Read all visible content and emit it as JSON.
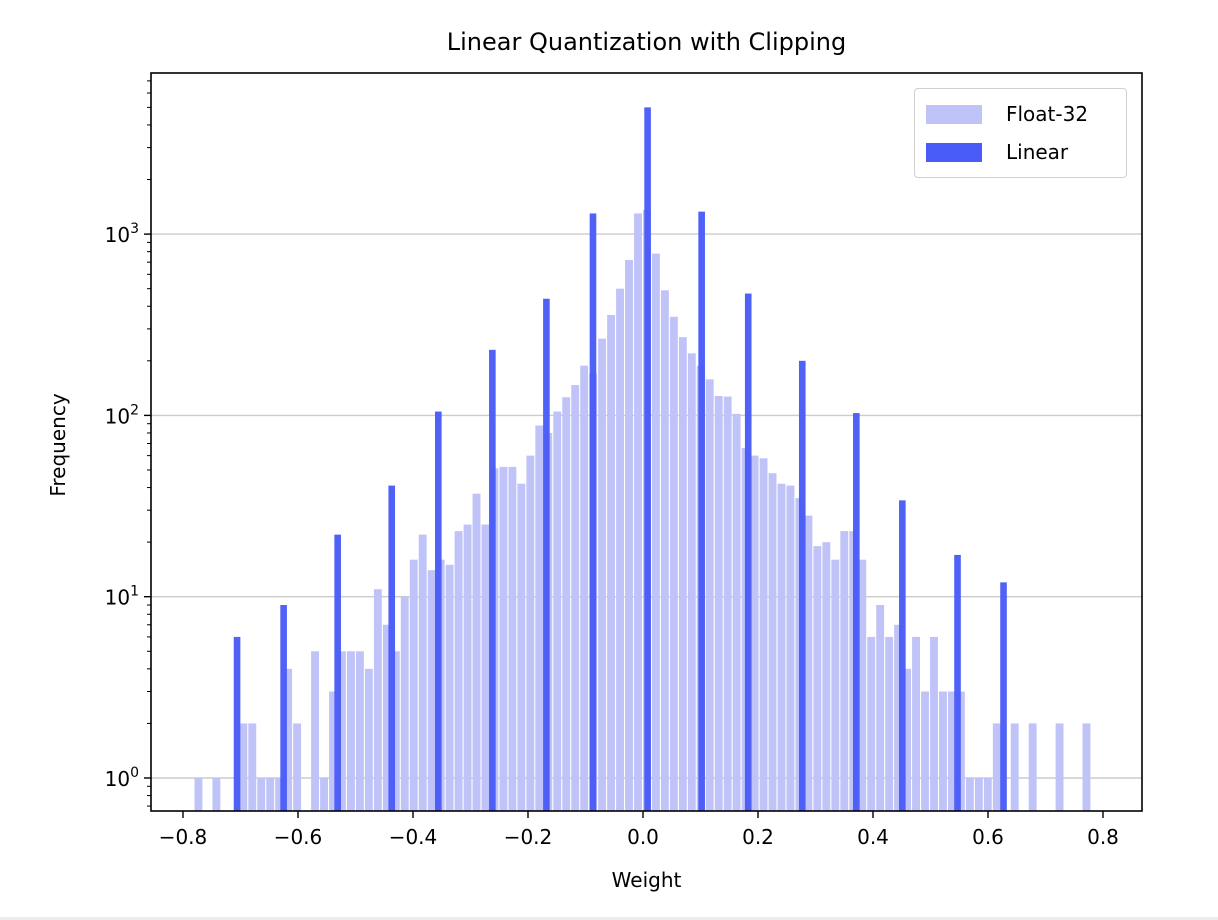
{
  "chart_data": {
    "type": "bar",
    "title": "Linear Quantization with Clipping",
    "xlabel": "Weight",
    "ylabel": "Frequency",
    "yscale": "log",
    "xlim": [
      -0.86,
      0.86
    ],
    "ylim": [
      0.65,
      8000
    ],
    "grid": {
      "y_major": true,
      "x": false
    },
    "legend_position": "upper right",
    "x_ticks": [
      -0.8,
      -0.6,
      -0.4,
      -0.2,
      0.0,
      0.2,
      0.4,
      0.6,
      0.8
    ],
    "x_tick_labels": [
      "−0.8",
      "−0.6",
      "−0.4",
      "−0.2",
      "0.0",
      "0.2",
      "0.4",
      "0.6",
      "0.8"
    ],
    "y_ticks": [
      1,
      10,
      100,
      1000
    ],
    "y_tick_labels": [
      {
        "base": "10",
        "exp": "0"
      },
      {
        "base": "10",
        "exp": "1"
      },
      {
        "base": "10",
        "exp": "2"
      },
      {
        "base": "10",
        "exp": "3"
      }
    ],
    "series": [
      {
        "name": "Float-32",
        "color": "#c0c3f7",
        "bin_start": -0.78,
        "bin_width": 0.0156,
        "bar_width_fraction": 0.88,
        "values": [
          1,
          0,
          1,
          0,
          0,
          2,
          2,
          1,
          1,
          1,
          4,
          2,
          0,
          5,
          1,
          3,
          5,
          5,
          5,
          4,
          11,
          7,
          5,
          10,
          16,
          22,
          14,
          16,
          15,
          23,
          25,
          37,
          25,
          51,
          52,
          52,
          42,
          60,
          88,
          80,
          105,
          126,
          147,
          188,
          170,
          265,
          358,
          500,
          720,
          1300,
          1360,
          780,
          490,
          350,
          270,
          220,
          188,
          158,
          128,
          127,
          102,
          66,
          60,
          58,
          48,
          42,
          41,
          35,
          28,
          19,
          20,
          16,
          23,
          23,
          16,
          6,
          9,
          6,
          7,
          4,
          6,
          3,
          6,
          3,
          3,
          3,
          1,
          1,
          1,
          2,
          0,
          2,
          0,
          2,
          0,
          0,
          2,
          0,
          0,
          2
        ]
      },
      {
        "name": "Linear",
        "color": "#4a5cf7",
        "bar_width": 0.0115,
        "x": [
          -0.706,
          -0.625,
          -0.531,
          -0.437,
          -0.356,
          -0.262,
          -0.168,
          -0.087,
          0.008,
          0.102,
          0.183,
          0.277,
          0.371,
          0.451,
          0.547,
          0.627
        ],
        "values": [
          6,
          9,
          22,
          41,
          105,
          230,
          440,
          1300,
          5000,
          1330,
          470,
          200,
          103,
          34,
          17,
          12
        ]
      }
    ]
  },
  "legend": {
    "items": [
      {
        "label": "Float-32",
        "color": "#c0c3f7"
      },
      {
        "label": "Linear",
        "color": "#4a5cf7"
      }
    ]
  }
}
